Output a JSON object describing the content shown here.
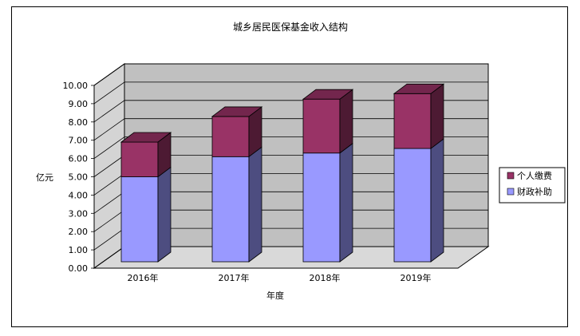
{
  "chart_data": {
    "type": "bar",
    "stacked": true,
    "three_d": true,
    "title": "城乡居民医保基金收入结构",
    "xlabel": "年度",
    "ylabel": "亿元",
    "categories": [
      "2016年",
      "2017年",
      "2018年",
      "2019年"
    ],
    "series": [
      {
        "name": "财政补助",
        "values": [
          4.65,
          5.75,
          5.95,
          6.2
        ],
        "color": "#9999FF"
      },
      {
        "name": "个人缴费",
        "values": [
          1.9,
          2.2,
          2.95,
          3.0
        ],
        "color": "#993366"
      }
    ],
    "ylim": [
      0,
      10
    ],
    "yticks": [
      "0.00",
      "1.00",
      "2.00",
      "3.00",
      "4.00",
      "5.00",
      "6.00",
      "7.00",
      "8.00",
      "9.00",
      "10.00"
    ],
    "grid": true,
    "wall_color": "#C0C0C0",
    "legend_placement": "right"
  }
}
